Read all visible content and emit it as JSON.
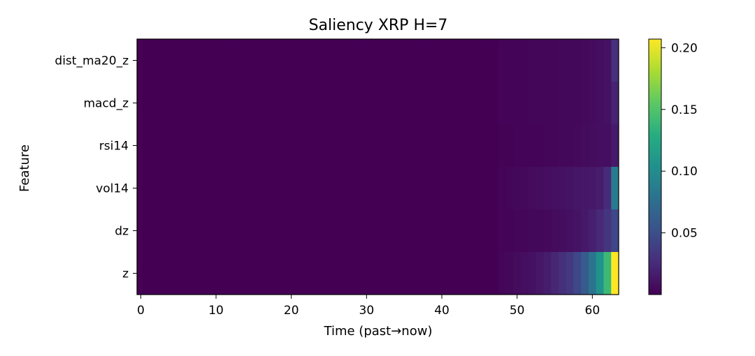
{
  "chart_data": {
    "type": "heatmap",
    "title": "Saliency XRP H=7",
    "xlabel": "Time (past→now)",
    "ylabel": "Feature",
    "rows": [
      "dist_ma20_z",
      "macd_z",
      "rsi14",
      "vol14",
      "dz",
      "z"
    ],
    "n_cols": 64,
    "xlim": [
      -0.5,
      63.5
    ],
    "xticks": [
      "0",
      "10",
      "20",
      "30",
      "40",
      "50",
      "60"
    ],
    "colormap": "viridis",
    "colorbar": {
      "range": [
        0.0,
        0.207
      ],
      "ticks": [
        "0.05",
        "0.10",
        "0.15",
        "0.20"
      ]
    },
    "nonzero_tail": {
      "dist_ma20_z": {
        "start": 48,
        "values": [
          0.002,
          0.002,
          0.002,
          0.002,
          0.003,
          0.003,
          0.003,
          0.003,
          0.004,
          0.004,
          0.004,
          0.005,
          0.006,
          0.008,
          0.01,
          0.028
        ]
      },
      "macd_z": {
        "start": 48,
        "values": [
          0.002,
          0.002,
          0.002,
          0.002,
          0.003,
          0.003,
          0.003,
          0.003,
          0.004,
          0.004,
          0.004,
          0.005,
          0.006,
          0.008,
          0.01,
          0.02
        ]
      },
      "rsi14": {
        "start": 48,
        "values": [
          0.001,
          0.001,
          0.002,
          0.002,
          0.002,
          0.002,
          0.003,
          0.003,
          0.004,
          0.004,
          0.005,
          0.006,
          0.007,
          0.008,
          0.008,
          0.015
        ]
      },
      "vol14": {
        "start": 48,
        "values": [
          0.002,
          0.003,
          0.004,
          0.005,
          0.006,
          0.007,
          0.008,
          0.009,
          0.01,
          0.011,
          0.012,
          0.013,
          0.014,
          0.016,
          0.025,
          0.085
        ]
      },
      "dz": {
        "start": 48,
        "values": [
          0.002,
          0.002,
          0.003,
          0.003,
          0.004,
          0.004,
          0.005,
          0.006,
          0.007,
          0.009,
          0.011,
          0.014,
          0.018,
          0.024,
          0.032,
          0.045
        ]
      },
      "z": {
        "start": 48,
        "values": [
          0.003,
          0.004,
          0.006,
          0.008,
          0.01,
          0.013,
          0.017,
          0.022,
          0.028,
          0.035,
          0.045,
          0.06,
          0.08,
          0.105,
          0.14,
          0.207
        ]
      }
    }
  }
}
